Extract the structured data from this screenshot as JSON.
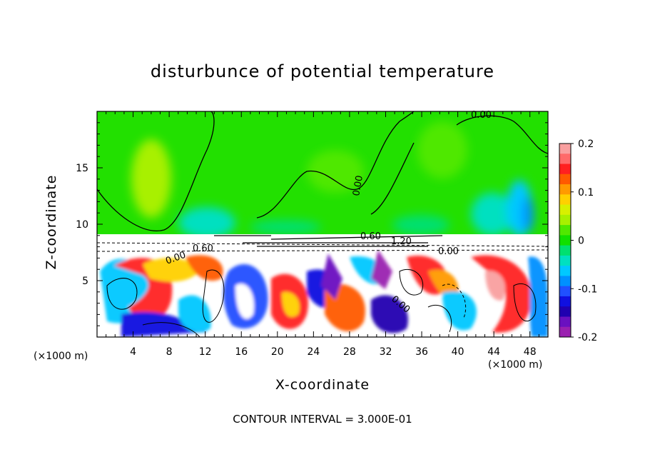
{
  "chart_data": {
    "type": "heatmap",
    "title": "disturbunce of potential temperature",
    "xlabel": "X-coordinate",
    "ylabel": "Z-coordinate",
    "x_unit": "(×1000 m)",
    "x_unit_right": "(×1000 m)",
    "xlim": [
      0,
      50
    ],
    "ylim": [
      0,
      20
    ],
    "x_ticks": [
      4,
      8,
      12,
      16,
      20,
      24,
      28,
      32,
      36,
      40,
      44,
      48
    ],
    "y_ticks": [
      5,
      10,
      15
    ],
    "colorbar": {
      "vmin": -0.2,
      "vmax": 0.2,
      "tick_labels": [
        "0.2",
        "0.1",
        "0",
        "-0.1",
        "-0.2"
      ],
      "tick_values": [
        0.2,
        0.1,
        0,
        -0.1,
        -0.2
      ],
      "colors": [
        "#f9a0a0",
        "#ff6a6a",
        "#ff2020",
        "#ff5a00",
        "#ff9a00",
        "#ffd000",
        "#d8f000",
        "#a8f000",
        "#50e800",
        "#10e000",
        "#00e070",
        "#00e0c0",
        "#00c8ff",
        "#0090ff",
        "#2050ff",
        "#1010e0",
        "#2000b0",
        "#6a10c0",
        "#9a20b0"
      ]
    },
    "contour_labels": [
      "0.00",
      "0.00",
      "0.60",
      "1.20",
      "0.00",
      "0.60",
      "0.00",
      "0.00"
    ],
    "footer": "CONTOUR INTERVAL = 3.000E-01"
  }
}
